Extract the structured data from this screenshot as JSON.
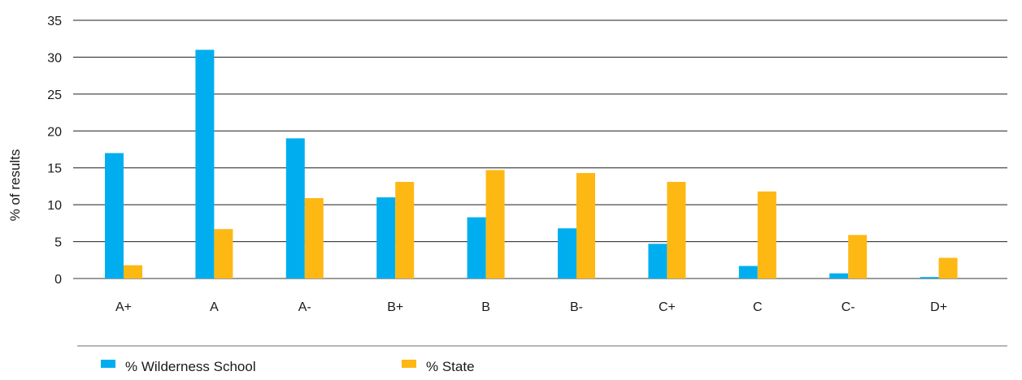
{
  "chart_data": {
    "type": "bar",
    "title": "",
    "xlabel": "",
    "ylabel": "% of results",
    "ylim": [
      0,
      35
    ],
    "yticks": [
      "0",
      "5",
      "10",
      "15",
      "20",
      "25",
      "30",
      "35"
    ],
    "grid": true,
    "legend_position": "bottom-left",
    "categories": [
      "A+",
      "A",
      "A-",
      "B+",
      "B",
      "B-",
      "C+",
      "C",
      "C-",
      "D+"
    ],
    "series": [
      {
        "name": "% Wilderness School",
        "color": "#00aeef",
        "values": [
          17,
          31,
          19,
          11,
          8.3,
          6.8,
          4.7,
          1.7,
          0.7,
          0.2
        ]
      },
      {
        "name": "% State",
        "color": "#fdb813",
        "values": [
          1.8,
          6.7,
          10.9,
          13.1,
          14.7,
          14.3,
          13.1,
          11.8,
          5.9,
          2.8
        ]
      }
    ]
  }
}
